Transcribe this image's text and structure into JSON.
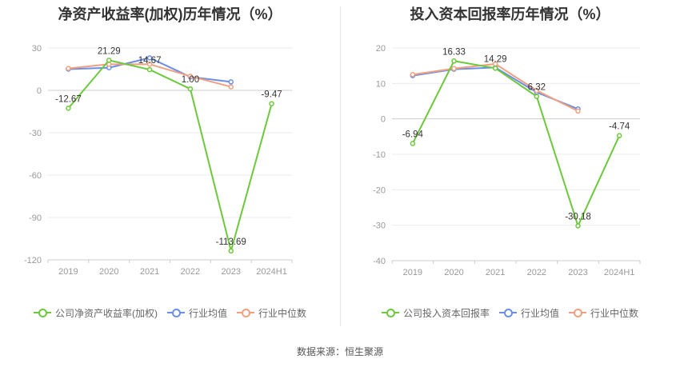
{
  "colors": {
    "company": "#6cc93b",
    "industry_avg": "#6b8fe8",
    "industry_median": "#f0a080"
  },
  "legend": {
    "company_roe": "公司净资产收益率(加权)",
    "company_roic": "公司投入资本回报率",
    "industry_avg": "行业均值",
    "industry_median": "行业中位数"
  },
  "source": "数据来源：恒生聚源",
  "chart_data": [
    {
      "type": "line",
      "title": "净资产收益率(加权)历年情况（%）",
      "categories": [
        "2019",
        "2020",
        "2021",
        "2022",
        "2023",
        "2024H1"
      ],
      "ylim": [
        -120,
        30
      ],
      "yticks": [
        30,
        0,
        -30,
        -60,
        -90,
        -120
      ],
      "grid": true,
      "legend_position": "bottom",
      "series": [
        {
          "name": "公司净资产收益率(加权)",
          "key": "company",
          "values": [
            -12.67,
            21.29,
            14.67,
            1.0,
            -113.69,
            -9.47
          ],
          "labels": [
            "-12.67",
            "21.29",
            "14.67",
            "1.00",
            "-113.69",
            "-9.47"
          ]
        },
        {
          "name": "行业均值",
          "key": "industry_avg",
          "values": [
            15.0,
            16.0,
            23.0,
            9.5,
            6.0,
            null
          ]
        },
        {
          "name": "行业中位数",
          "key": "industry_median",
          "values": [
            15.5,
            18.5,
            18.5,
            10.0,
            2.5,
            null
          ]
        }
      ]
    },
    {
      "type": "line",
      "title": "投入资本回报率历年情况（%）",
      "categories": [
        "2019",
        "2020",
        "2021",
        "2022",
        "2023",
        "2024H1"
      ],
      "ylim": [
        -40,
        20
      ],
      "yticks": [
        20,
        10,
        0,
        -10,
        -20,
        -30,
        -40
      ],
      "grid": true,
      "legend_position": "bottom",
      "series": [
        {
          "name": "公司投入资本回报率",
          "key": "company",
          "values": [
            -6.94,
            16.33,
            14.29,
            6.32,
            -30.18,
            -4.74
          ],
          "labels": [
            "-6.94",
            "16.33",
            "14.29",
            "6.32",
            "-30.18",
            "-4.74"
          ]
        },
        {
          "name": "行业均值",
          "key": "industry_avg",
          "values": [
            12.2,
            14.0,
            14.5,
            7.5,
            2.8,
            null
          ]
        },
        {
          "name": "行业中位数",
          "key": "industry_median",
          "values": [
            12.5,
            14.2,
            15.5,
            8.0,
            2.2,
            null
          ]
        }
      ]
    }
  ]
}
